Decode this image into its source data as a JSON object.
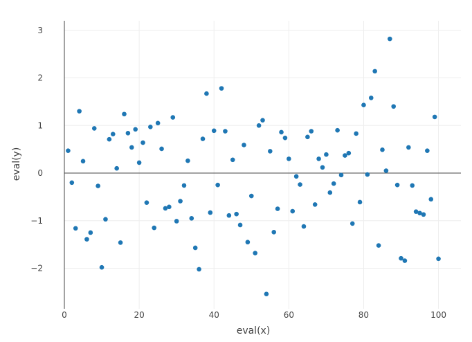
{
  "chart_data": {
    "type": "scatter",
    "title": "",
    "xlabel": "eval(x)",
    "ylabel": "eval(y)",
    "xlim": [
      0,
      106
    ],
    "ylim": [
      -2.85,
      3.2
    ],
    "xticks": [
      0,
      20,
      40,
      60,
      80,
      100
    ],
    "xtick_labels": [
      "0",
      "20",
      "40",
      "60",
      "80",
      "100"
    ],
    "yticks": [
      -2,
      -1,
      0,
      1,
      2,
      3
    ],
    "ytick_labels": [
      "−2",
      "−1",
      "0",
      "1",
      "2",
      "3"
    ],
    "grid": true,
    "marker_color": "#1f77b4",
    "x": [
      1,
      2,
      3,
      4,
      5,
      6,
      7,
      8,
      9,
      10,
      11,
      12,
      13,
      14,
      15,
      16,
      17,
      18,
      19,
      20,
      21,
      22,
      23,
      24,
      25,
      26,
      27,
      28,
      29,
      30,
      31,
      32,
      33,
      34,
      35,
      36,
      37,
      38,
      39,
      40,
      41,
      42,
      43,
      44,
      45,
      46,
      47,
      48,
      49,
      50,
      51,
      52,
      53,
      54,
      55,
      56,
      57,
      58,
      59,
      60,
      61,
      62,
      63,
      64,
      65,
      66,
      67,
      68,
      69,
      70,
      71,
      72,
      73,
      74,
      75,
      76,
      77,
      78,
      79,
      80,
      81,
      82,
      83,
      84,
      85,
      86,
      87,
      88,
      89,
      90,
      91,
      92,
      93,
      94,
      95,
      96,
      97,
      98,
      99,
      100
    ],
    "y": [
      0.47,
      -0.2,
      -1.16,
      1.3,
      0.25,
      -1.39,
      -1.25,
      0.94,
      -0.27,
      -1.98,
      -0.97,
      0.71,
      0.82,
      0.1,
      -1.46,
      1.24,
      0.84,
      0.54,
      0.92,
      0.22,
      0.64,
      -0.62,
      0.97,
      -1.15,
      1.05,
      0.51,
      -0.74,
      -0.71,
      1.17,
      -1.01,
      -0.59,
      -0.26,
      0.26,
      -0.95,
      -1.57,
      -2.02,
      0.72,
      1.67,
      -0.83,
      0.89,
      -0.25,
      1.78,
      0.88,
      -0.89,
      0.28,
      -0.86,
      -1.09,
      0.59,
      -1.45,
      -0.48,
      -1.68,
      1.0,
      1.11,
      -2.54,
      0.46,
      -1.24,
      -0.75,
      0.86,
      0.74,
      0.3,
      -0.8,
      -0.07,
      -0.24,
      -1.12,
      0.76,
      0.88,
      -0.66,
      0.3,
      0.12,
      0.39,
      -0.41,
      -0.22,
      0.9,
      -0.04,
      0.37,
      0.42,
      -1.06,
      0.83,
      -0.61,
      1.43,
      -0.03,
      1.58,
      2.14,
      -1.52,
      0.49,
      0.05,
      2.82,
      1.4,
      -0.25,
      -1.79,
      -1.84,
      0.54,
      -0.26,
      -0.81,
      -0.84,
      -0.87,
      0.47,
      -0.55,
      1.18,
      -1.8
    ]
  }
}
